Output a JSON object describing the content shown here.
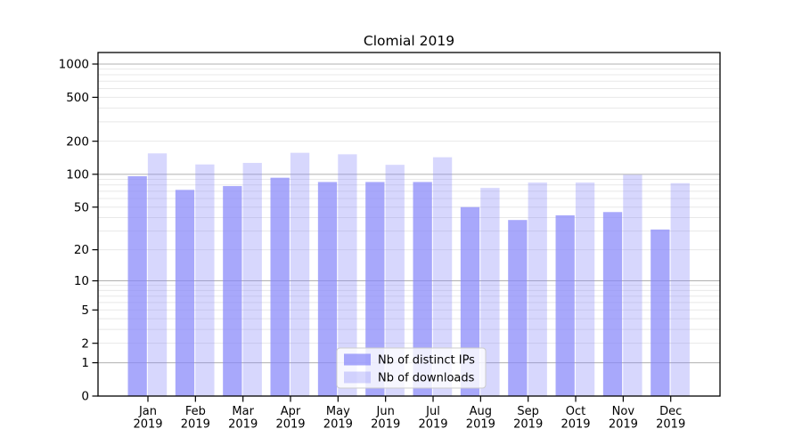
{
  "chart_data": {
    "type": "bar",
    "title": "Clomial 2019",
    "categories": [
      "Jan 2019",
      "Feb 2019",
      "Mar 2019",
      "Apr 2019",
      "May 2019",
      "Jun 2019",
      "Jul 2019",
      "Aug 2019",
      "Sep 2019",
      "Oct 2019",
      "Nov 2019",
      "Dec 2019"
    ],
    "series": [
      {
        "name": "Nb of distinct IPs",
        "color": "rgba(134,134,250,0.72)",
        "values": [
          96,
          72,
          78,
          93,
          85,
          85,
          85,
          50,
          38,
          42,
          45,
          31
        ]
      },
      {
        "name": "Nb of downloads",
        "color": "rgba(134,134,250,0.33)",
        "values": [
          155,
          123,
          127,
          157,
          152,
          122,
          143,
          75,
          84,
          84,
          99,
          83
        ]
      }
    ],
    "xlabel": "",
    "ylabel": "",
    "y_scale": "log1p",
    "y_ticks": [
      0,
      1,
      2,
      5,
      10,
      20,
      50,
      100,
      200,
      500,
      1000
    ],
    "ylim": [
      0,
      1272
    ],
    "grid": "on",
    "legend": {
      "position": "lower-center-inside",
      "entries": [
        "Nb of distinct IPs",
        "Nb of downloads"
      ]
    }
  },
  "colors": {
    "bar_distinct_ips": "rgba(134,134,250,0.72)",
    "bar_downloads": "rgba(134,134,250,0.33)",
    "grid_major": "#b0b0b0",
    "grid_minor": "#e8e8e8",
    "axis": "#000000",
    "legend_border": "#cccccc",
    "legend_bg": "rgba(255,255,255,0.8)"
  }
}
